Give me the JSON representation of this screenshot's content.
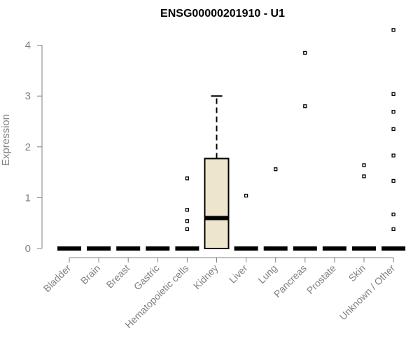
{
  "chart_data": {
    "type": "box",
    "title": "ENSG00000201910 - U1",
    "ylabel": "Expression",
    "xlabel": "",
    "ylim": [
      0,
      4.3
    ],
    "yticks": [
      0,
      1,
      2,
      3,
      4
    ],
    "grid": false,
    "legend": "none",
    "box_fill": "#ede6cc",
    "categories": [
      "Bladder",
      "Brain",
      "Breast",
      "Gastric",
      "Hematopoietic cells",
      "Kidney",
      "Liver",
      "Lung",
      "Pancreas",
      "Prostate",
      "Skin",
      "Unknown / Other"
    ],
    "boxes": [
      {
        "q1": 0,
        "median": 0,
        "q3": 0,
        "whisker_low": 0,
        "whisker_high": 0,
        "outliers": []
      },
      {
        "q1": 0,
        "median": 0,
        "q3": 0,
        "whisker_low": 0,
        "whisker_high": 0,
        "outliers": []
      },
      {
        "q1": 0,
        "median": 0,
        "q3": 0,
        "whisker_low": 0,
        "whisker_high": 0,
        "outliers": []
      },
      {
        "q1": 0,
        "median": 0,
        "q3": 0,
        "whisker_low": 0,
        "whisker_high": 0,
        "outliers": []
      },
      {
        "q1": 0,
        "median": 0,
        "q3": 0,
        "whisker_low": 0,
        "whisker_high": 0,
        "outliers": [
          1.38,
          0.76,
          0.54,
          0.38
        ]
      },
      {
        "q1": 0,
        "median": 0.6,
        "q3": 1.77,
        "whisker_low": 0,
        "whisker_high": 3.0,
        "outliers": []
      },
      {
        "q1": 0,
        "median": 0,
        "q3": 0,
        "whisker_low": 0,
        "whisker_high": 0,
        "outliers": [
          1.04
        ]
      },
      {
        "q1": 0,
        "median": 0,
        "q3": 0,
        "whisker_low": 0,
        "whisker_high": 0,
        "outliers": [
          1.56
        ]
      },
      {
        "q1": 0,
        "median": 0,
        "q3": 0,
        "whisker_low": 0,
        "whisker_high": 0,
        "outliers": [
          3.85,
          2.8
        ]
      },
      {
        "q1": 0,
        "median": 0,
        "q3": 0,
        "whisker_low": 0,
        "whisker_high": 0,
        "outliers": []
      },
      {
        "q1": 0,
        "median": 0,
        "q3": 0,
        "whisker_low": 0,
        "whisker_high": 0,
        "outliers": [
          1.64,
          1.42
        ]
      },
      {
        "q1": 0,
        "median": 0,
        "q3": 0,
        "whisker_low": 0,
        "whisker_high": 0,
        "outliers": [
          4.3,
          3.04,
          2.69,
          2.35,
          1.83,
          1.33,
          0.67,
          0.38
        ]
      }
    ]
  }
}
